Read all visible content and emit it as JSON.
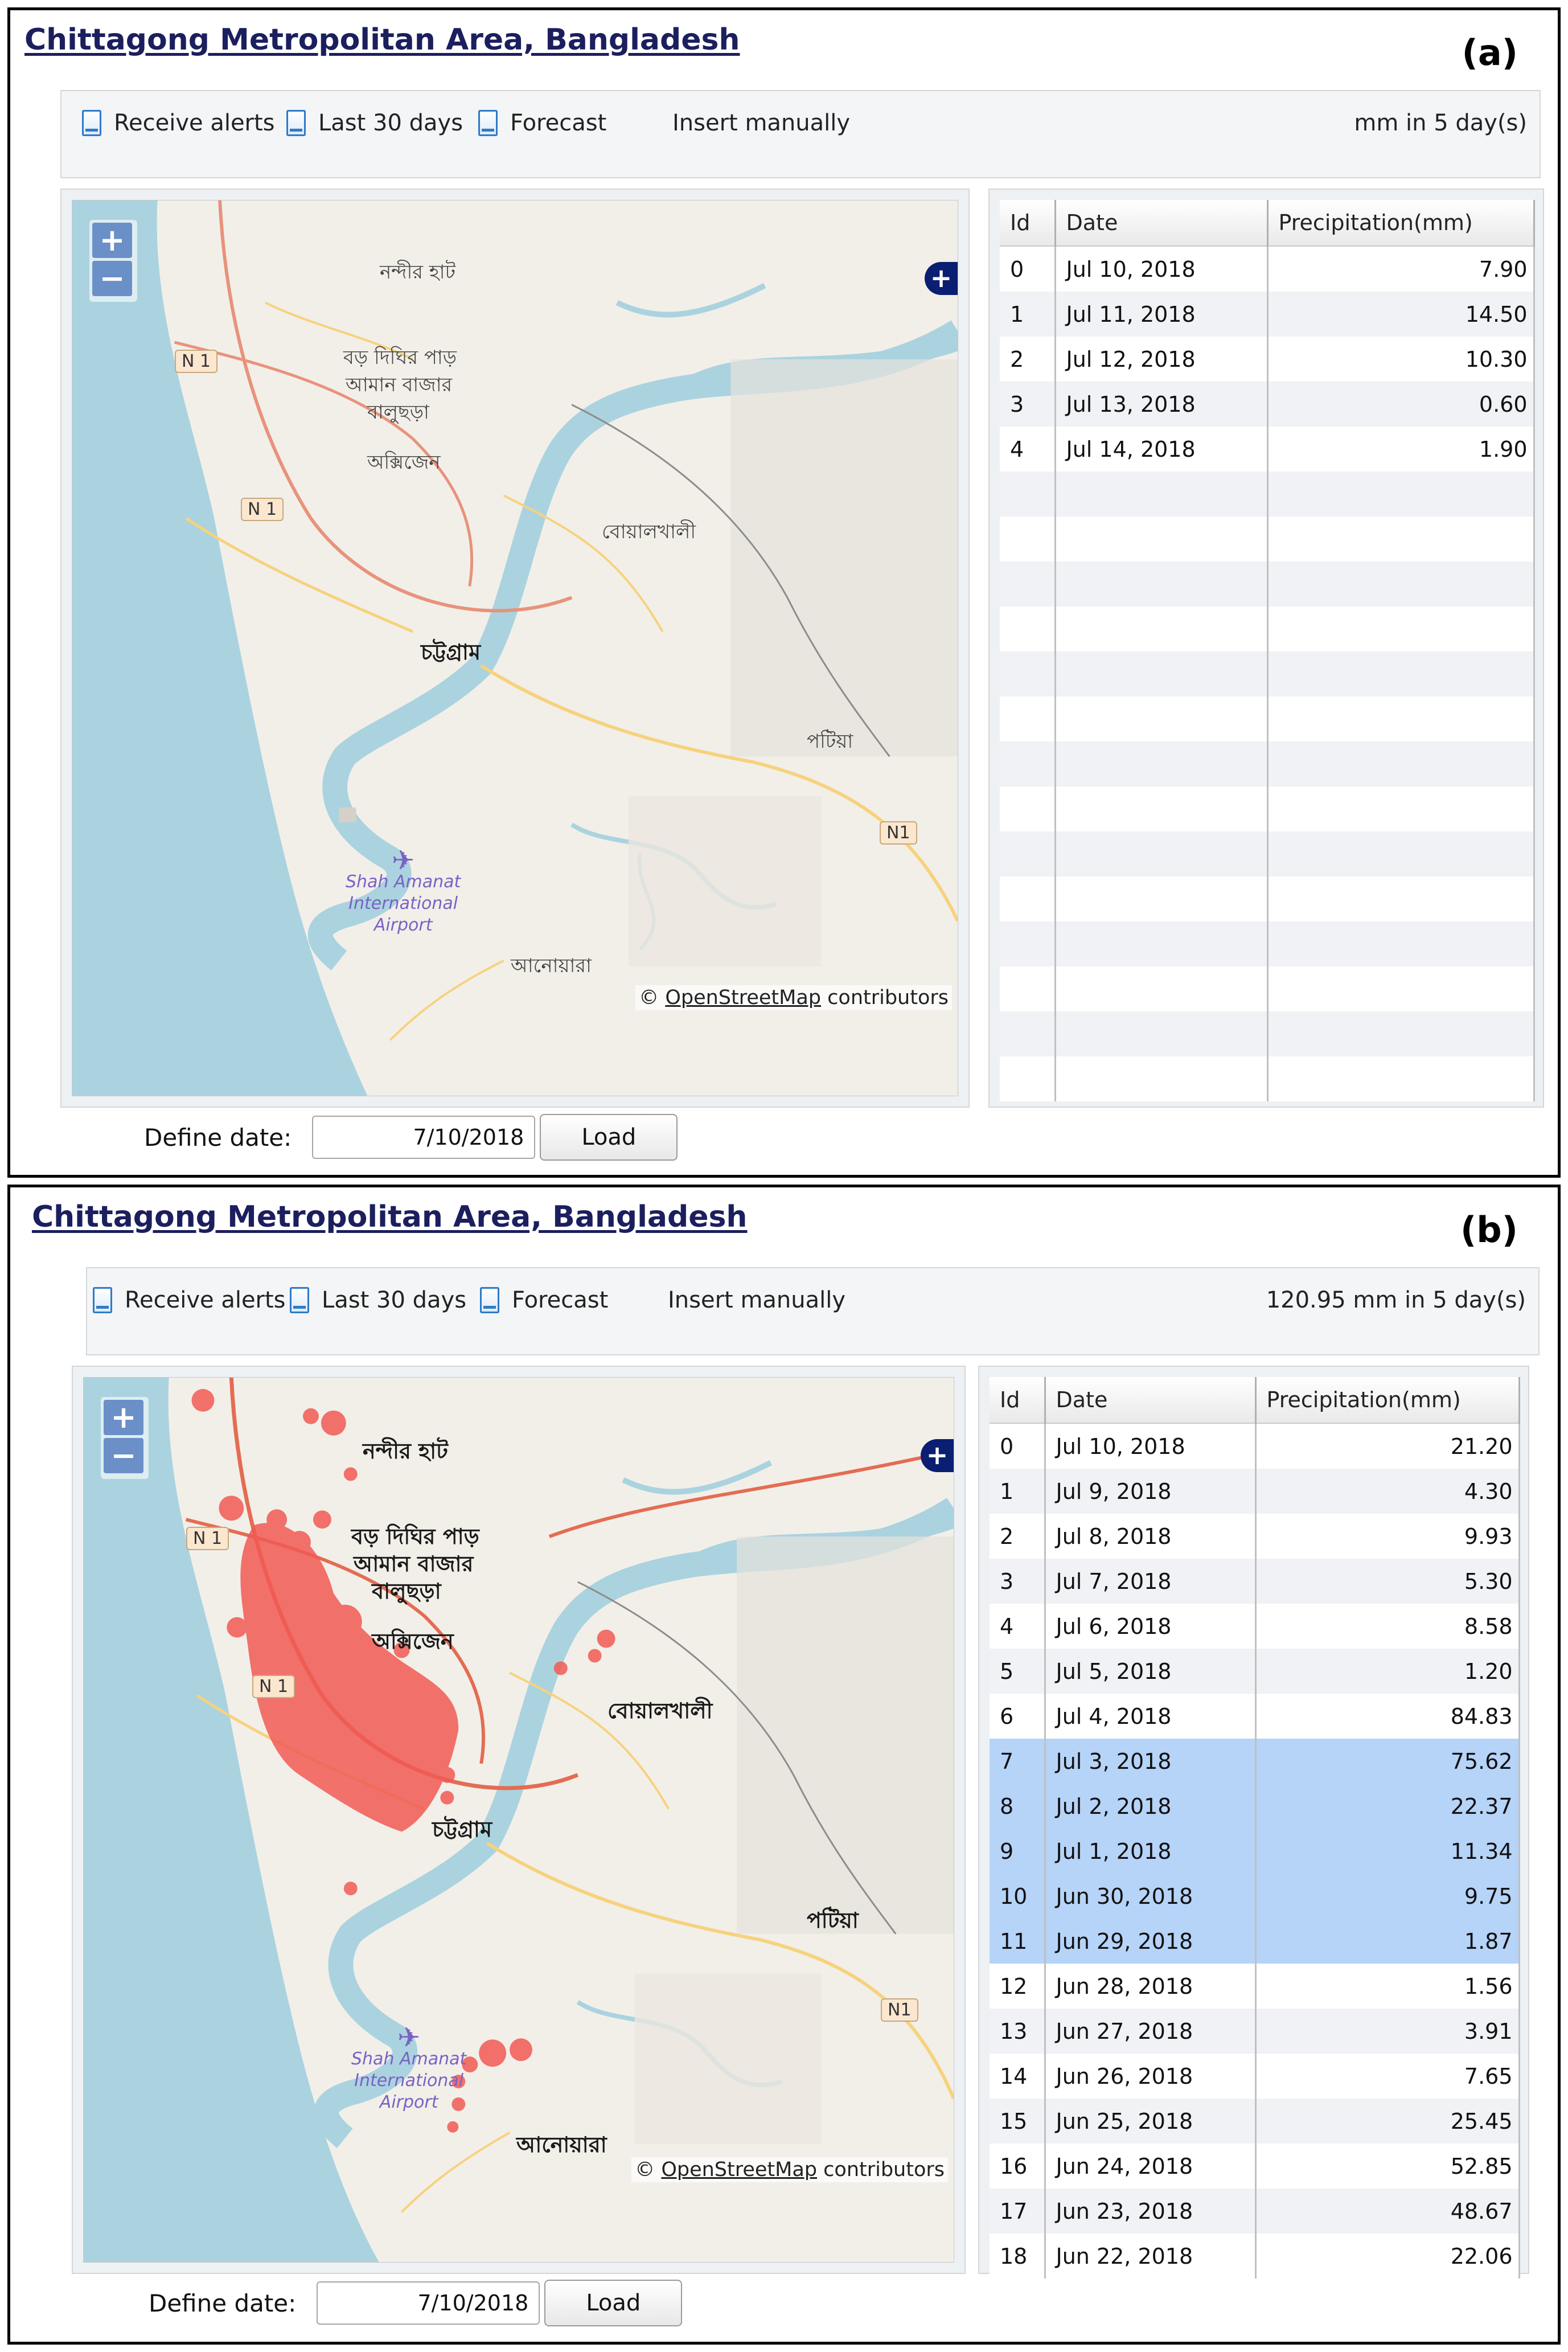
{
  "panel_a": {
    "title": "Chittagong Metropolitan Area, Bangladesh",
    "label": "(a)",
    "toolbar": {
      "receive_alerts": "Receive alerts",
      "last_30_days": "Last 30 days",
      "forecast": "Forecast",
      "insert_manually": "Insert manually",
      "summary": "mm in 5 day(s)"
    },
    "map": {
      "zoom_in": "+",
      "zoom_out": "−",
      "layers": "+",
      "attribution_prefix": "©",
      "attribution_link": "OpenStreetMap",
      "attribution_suffix": "contributors",
      "labels": {
        "nandirhat": "নন্দীর হাট",
        "boro_dighir_par": "বড় দিঘির পাড়",
        "aman_bazar": "আমান বাজার",
        "baluchhara": "বালুছড়া",
        "oxygen": "অক্সিজেন",
        "boalkhali": "বোয়ালখালী",
        "chattogram": "চট্টগ্রাম",
        "patiya": "পটিয়া",
        "anowara": "আনোয়ারা",
        "airport_1": "Shah Amanat",
        "airport_2": "International",
        "airport_3": "Airport"
      },
      "roads": {
        "n1_a": "N 1",
        "n1_b": "N 1",
        "n1_c": "N1"
      },
      "flood_overlay": false
    },
    "table": {
      "headers": [
        "Id",
        "Date",
        "Precipitation(mm)"
      ],
      "rows": [
        {
          "id": "0",
          "date": "Jul 10, 2018",
          "precip": "7.90"
        },
        {
          "id": "1",
          "date": "Jul 11, 2018",
          "precip": "14.50"
        },
        {
          "id": "2",
          "date": "Jul 12, 2018",
          "precip": "10.30"
        },
        {
          "id": "3",
          "date": "Jul 13, 2018",
          "precip": "0.60"
        },
        {
          "id": "4",
          "date": "Jul 14, 2018",
          "precip": "1.90"
        }
      ],
      "empty_rows": 14
    },
    "define_date": {
      "label": "Define date:",
      "value": "7/10/2018",
      "load": "Load"
    }
  },
  "panel_b": {
    "title": "Chittagong Metropolitan Area, Bangladesh",
    "label": "(b)",
    "toolbar": {
      "receive_alerts": "Receive alerts",
      "last_30_days": "Last 30 days",
      "forecast": "Forecast",
      "insert_manually": "Insert manually",
      "summary": "120.95 mm in 5 day(s)"
    },
    "map": {
      "zoom_in": "+",
      "zoom_out": "−",
      "layers": "+",
      "attribution_prefix": "©",
      "attribution_link": "OpenStreetMap",
      "attribution_suffix": "contributors",
      "labels": {
        "nandirhat": "নন্দীর হাট",
        "boro_dighir_par": "বড় দিঘির পাড়",
        "aman_bazar": "আমান বাজার",
        "baluchhara": "বালুছড়া",
        "oxygen": "অক্সিজেন",
        "boalkhali": "বোয়ালখালী",
        "chattogram": "চট্টগ্রাম",
        "patiya": "পটিয়া",
        "anowara": "আনোয়ারা",
        "airport_1": "Shah Amanat",
        "airport_2": "International",
        "airport_3": "Airport"
      },
      "roads": {
        "n1_a": "N 1",
        "n1_b": "N 1",
        "n1_c": "N1"
      },
      "flood_overlay": true,
      "flood_color": "#f25a55"
    },
    "table": {
      "headers": [
        "Id",
        "Date",
        "Precipitation(mm)"
      ],
      "selected_ids": [
        "7",
        "8",
        "9",
        "10",
        "11"
      ],
      "selection_color": "#b6d3f8",
      "rows": [
        {
          "id": "0",
          "date": "Jul 10, 2018",
          "precip": "21.20"
        },
        {
          "id": "1",
          "date": "Jul 9, 2018",
          "precip": "4.30"
        },
        {
          "id": "2",
          "date": "Jul 8, 2018",
          "precip": "9.93"
        },
        {
          "id": "3",
          "date": "Jul 7, 2018",
          "precip": "5.30"
        },
        {
          "id": "4",
          "date": "Jul 6, 2018",
          "precip": "8.58"
        },
        {
          "id": "5",
          "date": "Jul 5, 2018",
          "precip": "1.20"
        },
        {
          "id": "6",
          "date": "Jul 4, 2018",
          "precip": "84.83"
        },
        {
          "id": "7",
          "date": "Jul 3, 2018",
          "precip": "75.62"
        },
        {
          "id": "8",
          "date": "Jul 2, 2018",
          "precip": "22.37"
        },
        {
          "id": "9",
          "date": "Jul 1, 2018",
          "precip": "11.34"
        },
        {
          "id": "10",
          "date": "Jun 30, 2018",
          "precip": "9.75"
        },
        {
          "id": "11",
          "date": "Jun 29, 2018",
          "precip": "1.87"
        },
        {
          "id": "12",
          "date": "Jun 28, 2018",
          "precip": "1.56"
        },
        {
          "id": "13",
          "date": "Jun 27, 2018",
          "precip": "3.91"
        },
        {
          "id": "14",
          "date": "Jun 26, 2018",
          "precip": "7.65"
        },
        {
          "id": "15",
          "date": "Jun 25, 2018",
          "precip": "25.45"
        },
        {
          "id": "16",
          "date": "Jun 24, 2018",
          "precip": "52.85"
        },
        {
          "id": "17",
          "date": "Jun 23, 2018",
          "precip": "48.67"
        },
        {
          "id": "18",
          "date": "Jun 22, 2018",
          "precip": "22.06"
        }
      ],
      "empty_rows": 0
    },
    "define_date": {
      "label": "Define date:",
      "value": "7/10/2018",
      "load": "Load"
    }
  },
  "colors": {
    "title": "#1b1f5e",
    "water": "#aad3df",
    "land": "#f2efe9",
    "major_road": "#e8927c",
    "secondary_road": "#f7d27d",
    "flood": "#f25a55",
    "selection": "#b6d3f8"
  }
}
